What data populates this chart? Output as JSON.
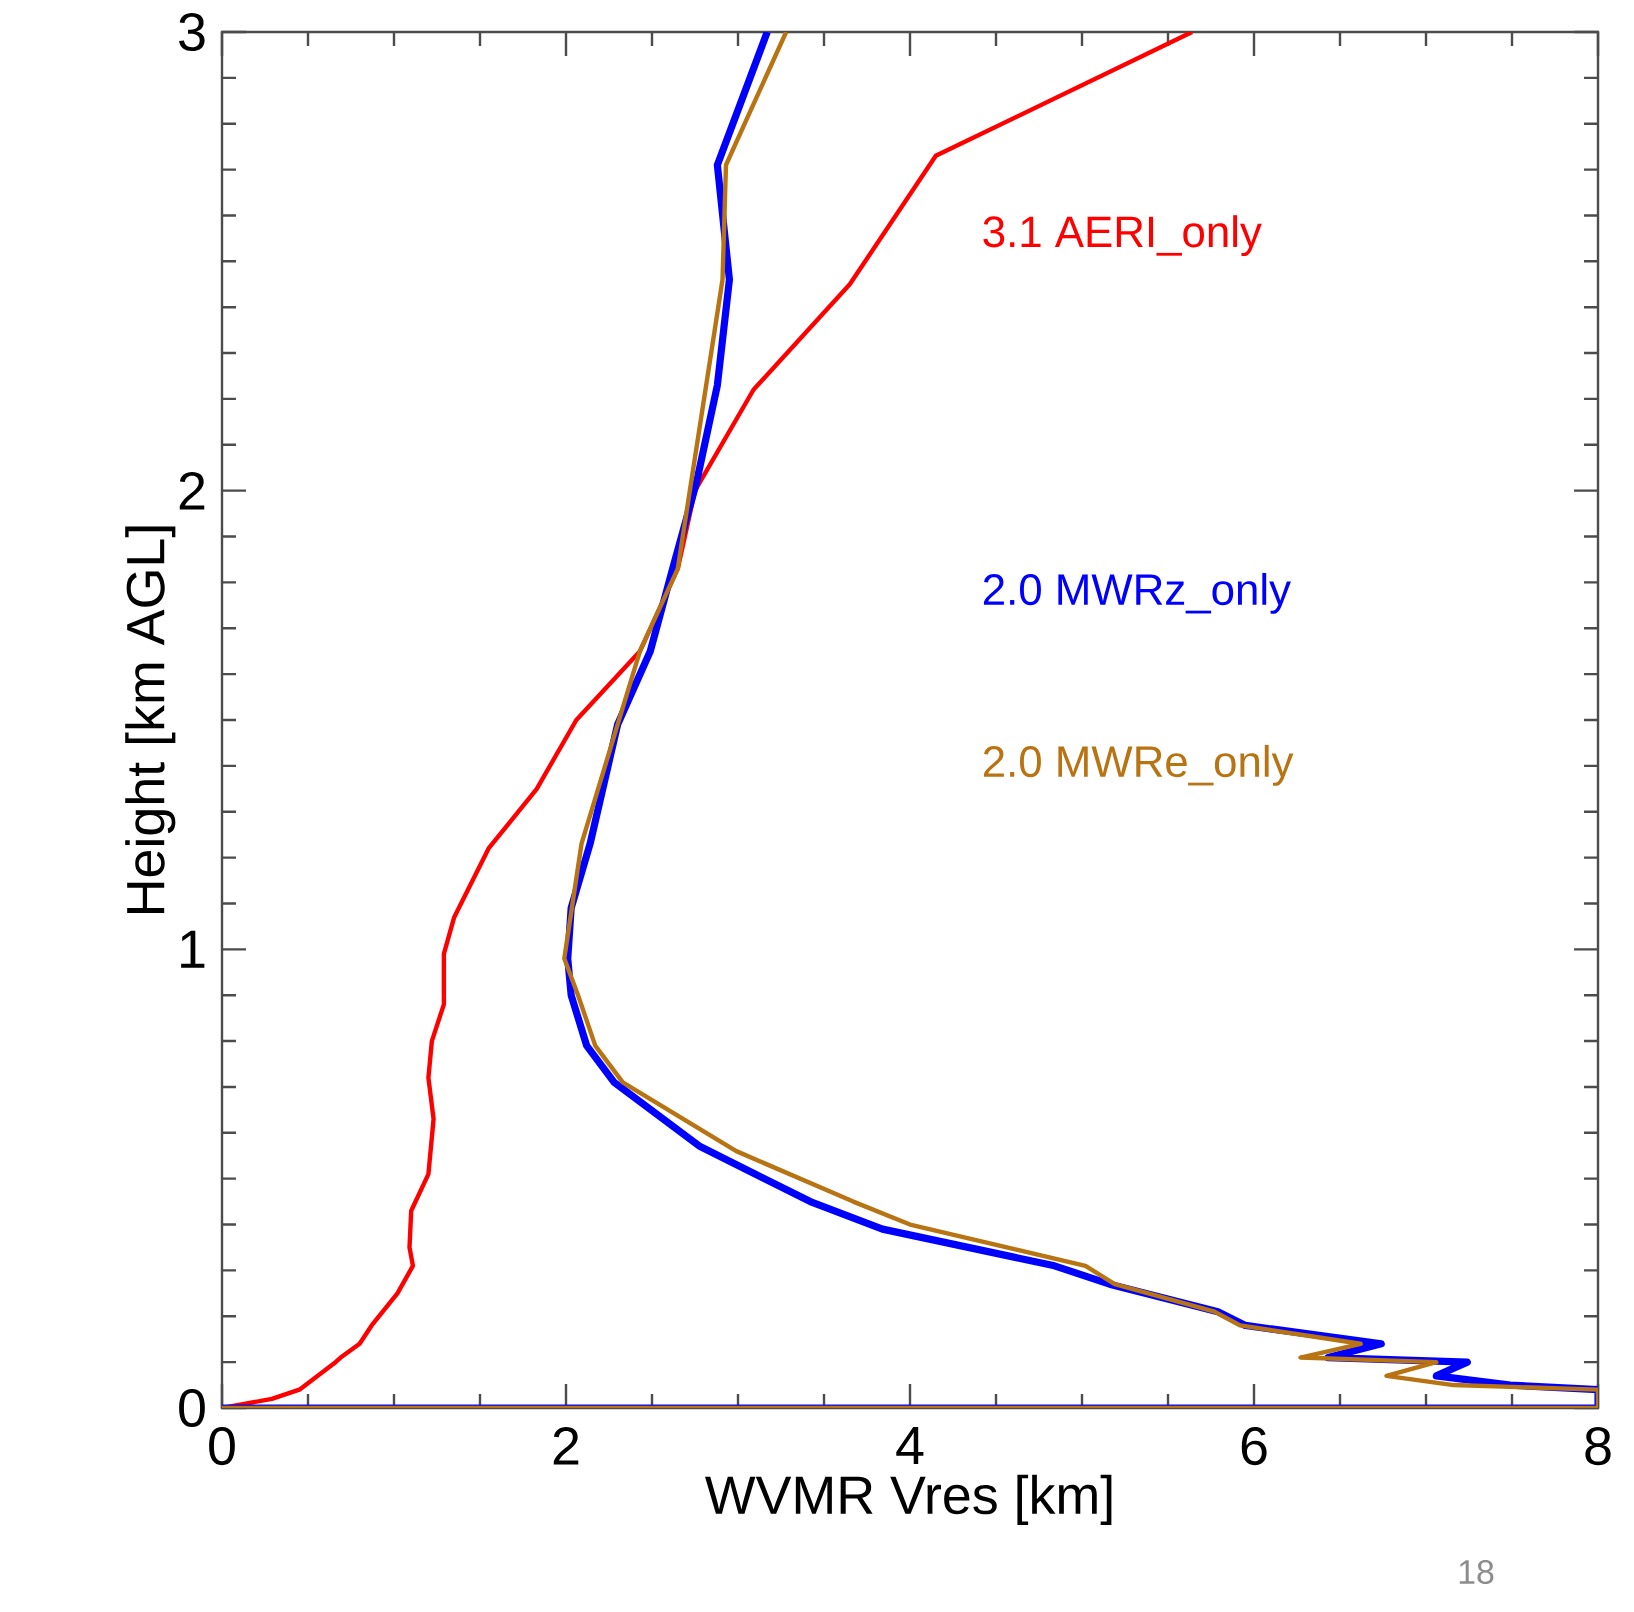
{
  "chart_data": {
    "type": "line",
    "xlabel": "WVMR Vres [km]",
    "ylabel": "Height [km AGL]",
    "xlim": [
      0,
      8
    ],
    "ylim": [
      0,
      3
    ],
    "xticks": [
      0,
      2,
      4,
      6,
      8
    ],
    "yticks": [
      0,
      1,
      2,
      3
    ],
    "annotations": [
      "18"
    ],
    "series": [
      {
        "name": "3.1 AERI_only",
        "color": "#ff0000",
        "x": [
          0,
          0.29,
          0.45,
          0.66,
          0.69,
          0.8,
          0.87,
          1.02,
          1.11,
          1.09,
          1.1,
          1.2,
          1.23,
          1.2,
          1.22,
          1.29,
          1.29,
          1.35,
          1.55,
          1.83,
          2.06,
          2.43,
          2.65,
          2.75,
          3.09,
          3.65,
          4.15,
          5.64
        ],
        "values": [
          0,
          0.02,
          0.04,
          0.1,
          0.11,
          0.14,
          0.18,
          0.25,
          0.31,
          0.35,
          0.43,
          0.51,
          0.63,
          0.72,
          0.8,
          0.88,
          0.99,
          1.07,
          1.22,
          1.35,
          1.5,
          1.65,
          1.83,
          2.0,
          2.22,
          2.45,
          2.73,
          3.0
        ]
      },
      {
        "name": "2.0 MWRz_only",
        "color": "#0000ff",
        "x": [
          0,
          8,
          8,
          7.49,
          7.06,
          7.24,
          6.43,
          6.74,
          5.95,
          5.79,
          5.16,
          4.84,
          3.84,
          3.42,
          2.78,
          2.28,
          2.12,
          2.03,
          2.01,
          2.03,
          2.14,
          2.3,
          2.49,
          2.62,
          2.76,
          2.88,
          2.95,
          2.88,
          3.17
        ],
        "values": [
          0,
          0,
          0.04,
          0.05,
          0.07,
          0.1,
          0.11,
          0.14,
          0.18,
          0.21,
          0.27,
          0.31,
          0.39,
          0.45,
          0.57,
          0.71,
          0.79,
          0.9,
          0.98,
          1.09,
          1.23,
          1.49,
          1.65,
          1.83,
          2.02,
          2.23,
          2.46,
          2.71,
          3.0
        ]
      },
      {
        "name": "2.0 MWRe_only",
        "color": "#b87312",
        "x": [
          0,
          8,
          8,
          7.16,
          6.77,
          7.06,
          6.27,
          6.62,
          5.92,
          5.77,
          5.19,
          5.02,
          4.0,
          3.67,
          2.99,
          2.33,
          2.17,
          2.07,
          1.99,
          2.09,
          2.3,
          2.43,
          2.65,
          2.72,
          2.91,
          2.93,
          3.28
        ],
        "values": [
          0,
          0,
          0.04,
          0.05,
          0.07,
          0.1,
          0.11,
          0.14,
          0.18,
          0.21,
          0.27,
          0.31,
          0.4,
          0.45,
          0.56,
          0.71,
          0.79,
          0.9,
          0.98,
          1.23,
          1.49,
          1.65,
          1.83,
          2.0,
          2.46,
          2.71,
          3.0
        ]
      }
    ]
  }
}
